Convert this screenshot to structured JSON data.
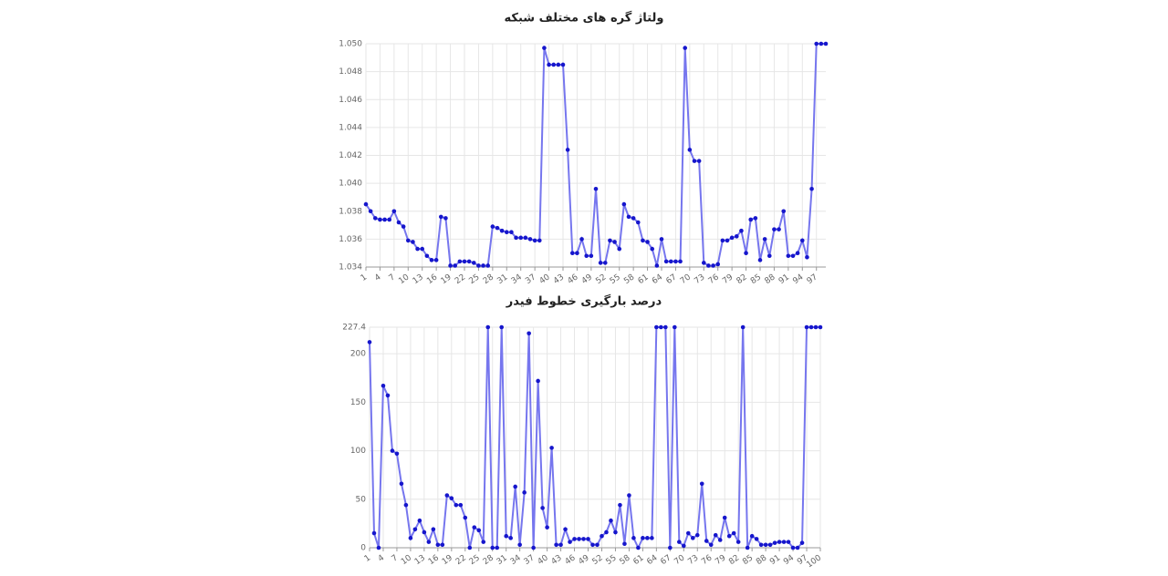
{
  "chart_data": [
    {
      "type": "line",
      "title": "ولتاژ گره های مختلف شبکه",
      "x": [
        1,
        2,
        3,
        4,
        5,
        6,
        7,
        8,
        9,
        10,
        11,
        12,
        13,
        14,
        15,
        16,
        17,
        18,
        19,
        20,
        21,
        22,
        23,
        24,
        25,
        26,
        27,
        28,
        29,
        30,
        31,
        32,
        33,
        34,
        35,
        36,
        37,
        38,
        39,
        40,
        41,
        42,
        43,
        44,
        45,
        46,
        47,
        48,
        49,
        50,
        51,
        52,
        53,
        54,
        55,
        56,
        57,
        58,
        59,
        60,
        61,
        62,
        63,
        64,
        65,
        66,
        67,
        68,
        69,
        70,
        71,
        72,
        73,
        74,
        75,
        76,
        77,
        78,
        79,
        80,
        81,
        82,
        83,
        84,
        85,
        86,
        87,
        88,
        89,
        90,
        91,
        92,
        93,
        94,
        95,
        96,
        97,
        98,
        99
      ],
      "values": [
        1.0385,
        1.038,
        1.0375,
        1.0374,
        1.0374,
        1.0374,
        1.038,
        1.0372,
        1.0369,
        1.0359,
        1.0358,
        1.0353,
        1.0353,
        1.0348,
        1.0345,
        1.0345,
        1.0376,
        1.0375,
        1.0341,
        1.0341,
        1.0344,
        1.0344,
        1.0344,
        1.0343,
        1.0341,
        1.0341,
        1.0341,
        1.0369,
        1.0368,
        1.0366,
        1.0365,
        1.0365,
        1.0361,
        1.0361,
        1.0361,
        1.036,
        1.0359,
        1.0359,
        1.0497,
        1.0485,
        1.0485,
        1.0485,
        1.0485,
        1.0424,
        1.035,
        1.035,
        1.036,
        1.0348,
        1.0348,
        1.0396,
        1.0343,
        1.0343,
        1.0359,
        1.0358,
        1.0353,
        1.0385,
        1.0376,
        1.0375,
        1.0372,
        1.0359,
        1.0358,
        1.0353,
        1.0341,
        1.036,
        1.0344,
        1.0344,
        1.0344,
        1.0344,
        1.0497,
        1.0424,
        1.0416,
        1.0416,
        1.0343,
        1.0341,
        1.0341,
        1.0342,
        1.0359,
        1.0359,
        1.0361,
        1.0362,
        1.0366,
        1.035,
        1.0374,
        1.0375,
        1.0345,
        1.036,
        1.0348,
        1.0367,
        1.0367,
        1.038,
        1.0348,
        1.0348,
        1.035,
        1.0359,
        1.0347,
        1.0396,
        1.05,
        1.05,
        1.05
      ],
      "color": "#7676ee",
      "marker_color": "#1616cc",
      "xlim": [
        1,
        99
      ],
      "xticks": [
        1,
        4,
        7,
        10,
        13,
        16,
        19,
        22,
        25,
        28,
        31,
        34,
        37,
        40,
        43,
        46,
        49,
        52,
        55,
        58,
        61,
        64,
        67,
        70,
        73,
        76,
        79,
        82,
        85,
        88,
        91,
        94,
        97
      ],
      "ylim": [
        1.034,
        1.05
      ],
      "yticks": [
        1.034,
        1.036,
        1.038,
        {
          "value": 1.04,
          "label": "1.040"
        },
        1.042,
        1.044,
        1.046,
        1.048,
        {
          "value": 1.05,
          "label": "1.050"
        }
      ],
      "grid": true
    },
    {
      "type": "line",
      "title": "درصد بارگیری خطوط فیدر",
      "x": [
        1,
        2,
        3,
        4,
        5,
        6,
        7,
        8,
        9,
        10,
        11,
        12,
        13,
        14,
        15,
        16,
        17,
        18,
        19,
        20,
        21,
        22,
        23,
        24,
        25,
        26,
        27,
        28,
        29,
        30,
        31,
        32,
        33,
        34,
        35,
        36,
        37,
        38,
        39,
        40,
        41,
        42,
        43,
        44,
        45,
        46,
        47,
        48,
        49,
        50,
        51,
        52,
        53,
        54,
        55,
        56,
        57,
        58,
        59,
        60,
        61,
        62,
        63,
        64,
        65,
        66,
        67,
        68,
        69,
        70,
        71,
        72,
        73,
        74,
        75,
        76,
        77,
        78,
        79,
        80,
        81,
        82,
        83,
        84,
        85,
        86,
        87,
        88,
        89,
        90,
        91,
        92,
        93,
        94,
        95,
        96,
        97,
        98,
        99,
        100
      ],
      "values": [
        212,
        15,
        0,
        167,
        157,
        100,
        97,
        66,
        44,
        10,
        19,
        28,
        16,
        6,
        19,
        3,
        3,
        54,
        51,
        44,
        44,
        31,
        0,
        21,
        18,
        6,
        227.4,
        0,
        0,
        227.4,
        12,
        10,
        63,
        3,
        57,
        221,
        0,
        172,
        41,
        21,
        103,
        3,
        3,
        19,
        6,
        9,
        9,
        9,
        9,
        3,
        3,
        12,
        16,
        28,
        16,
        44,
        4,
        54,
        10,
        0,
        10,
        10,
        10,
        227.4,
        227.4,
        227.4,
        0,
        227.4,
        6,
        2,
        15,
        10,
        13,
        66,
        7,
        3,
        13,
        8,
        31,
        12,
        15,
        6,
        227.4,
        0,
        12,
        9,
        3,
        3,
        3,
        5,
        6,
        6,
        6,
        0,
        0,
        5,
        227.4,
        227.4,
        227.4,
        227.4
      ],
      "color": "#7676ee",
      "marker_color": "#1616cc",
      "xlim": [
        1,
        100
      ],
      "xticks": [
        1,
        4,
        7,
        10,
        13,
        16,
        19,
        22,
        25,
        28,
        31,
        34,
        37,
        40,
        43,
        46,
        49,
        52,
        55,
        58,
        61,
        64,
        67,
        70,
        73,
        76,
        79,
        82,
        85,
        88,
        91,
        94,
        97,
        100
      ],
      "ylim": [
        0,
        227.4
      ],
      "yticks": [
        0,
        50,
        100,
        150,
        200,
        227.4
      ],
      "grid": true
    }
  ]
}
